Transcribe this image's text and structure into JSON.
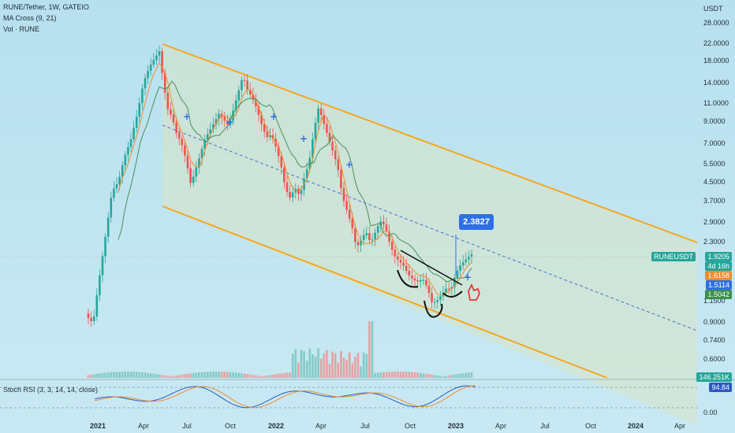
{
  "legend": {
    "symbol": "RUNE/Tether, 1W, GATEIO",
    "indicator_ma": "MA Cross (9, 21)",
    "indicator_vol": "Vol · RUNE",
    "stoch": "Stoch RSI (3, 3, 14, 14, close)"
  },
  "price_axis": {
    "currency": "USDT",
    "ticks": [
      "28.0000",
      "22.0000",
      "18.0000",
      "14.0000",
      "11.0000",
      "9.0000",
      "7.0000",
      "5.5000",
      "4.5000",
      "3.7000",
      "2.9000",
      "2.3000",
      "1.1500",
      "0.9000",
      "0.7400",
      "0.6000"
    ]
  },
  "price_tags": {
    "symbol_tag": "RUNEUSDT",
    "last_price": "1.9205",
    "countdown": "4d 16h",
    "ma_fast": "1.6158",
    "ma_slow": "1.5114",
    "ma_green": "1.5042",
    "volume": "146.251K",
    "stoch_value": "94.84"
  },
  "stoch_axis": {
    "zero": "0.00"
  },
  "callout": "2.3827",
  "time_axis": [
    "2021",
    "Apr",
    "Jul",
    "Oct",
    "2022",
    "Apr",
    "Jul",
    "Oct",
    "2023",
    "Apr",
    "Jul",
    "Oct",
    "2024",
    "Apr"
  ],
  "colors": {
    "bull": "#26a69a",
    "bear": "#ef5350",
    "channel": "#f5a623",
    "ma_fast": "#f08c2b",
    "ma_slow": "#4a8f5c",
    "stoch_k": "#2b59c3",
    "stoch_d": "#f08c2b",
    "callout": "#2f6fe6"
  }
}
